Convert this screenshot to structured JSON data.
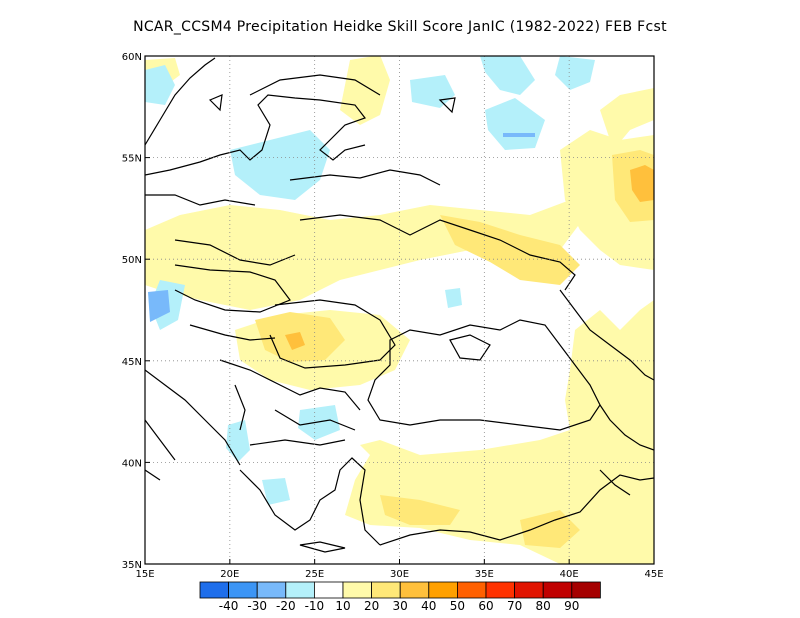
{
  "title": "NCAR_CCSM4  Precipitation Heidke Skill Score JanIC (1982-2022) FEB Fcst",
  "map": {
    "lon_range": [
      15,
      45
    ],
    "lat_range": [
      35,
      60
    ],
    "lon_ticks": [
      {
        "value": 15,
        "label": "15E"
      },
      {
        "value": 20,
        "label": "20E"
      },
      {
        "value": 25,
        "label": "25E"
      },
      {
        "value": 30,
        "label": "30E"
      },
      {
        "value": 35,
        "label": "35E"
      },
      {
        "value": 40,
        "label": "40E"
      },
      {
        "value": 45,
        "label": "45E"
      }
    ],
    "lat_ticks": [
      {
        "value": 35,
        "label": "35N"
      },
      {
        "value": 40,
        "label": "40N"
      },
      {
        "value": 45,
        "label": "45N"
      },
      {
        "value": 50,
        "label": "50N"
      },
      {
        "value": 55,
        "label": "55N"
      },
      {
        "value": 60,
        "label": "60N"
      }
    ],
    "grid": "dotted"
  },
  "colorbar": {
    "colors": [
      "#1e6eeb",
      "#3c95f5",
      "#78b9fa",
      "#b4f0fa",
      "#ffffff",
      "#fffaaa",
      "#ffe878",
      "#ffc03c",
      "#ffa000",
      "#ff6000",
      "#ff3200",
      "#e11400",
      "#c00000",
      "#a50000"
    ],
    "labels": [
      "-40",
      "-30",
      "-20",
      "-10",
      "10",
      "20",
      "30",
      "40",
      "50",
      "60",
      "70",
      "80",
      "90"
    ]
  },
  "field": {
    "light_yellow": "#fffaaa",
    "yellow": "#ffe878",
    "orange_light": "#ffc03c",
    "light_cyan": "#b4f0fa",
    "blue": "#78b9fa"
  }
}
